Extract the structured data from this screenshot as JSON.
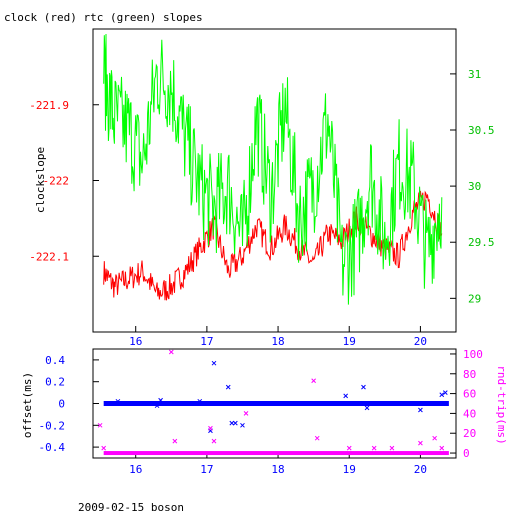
{
  "page_title": "clock (red) rtc (green) slopes",
  "footer": "2009-02-15 boson",
  "colors": {
    "clock": "#ff0000",
    "rtc": "#00ff00",
    "offset": "#0000ff",
    "rndtrip": "#ff00ff",
    "axis": "#000000"
  },
  "chart_data": [
    {
      "type": "line",
      "title": "clock (red) rtc (green) slopes",
      "xlabel": "",
      "ylabel": "clockslope",
      "xlim": [
        15.4,
        20.5
      ],
      "ylim_left": [
        -222.2,
        -221.8
      ],
      "ylim_right": [
        28.7,
        31.4
      ],
      "x_ticks": [
        "16",
        "17",
        "18",
        "19",
        "20"
      ],
      "y_ticks_left": [
        "-221.9",
        "-222",
        "-222.1"
      ],
      "y_ticks_right": [
        "31",
        "30.5",
        "30",
        "29.5",
        "29"
      ],
      "series": [
        {
          "color": "red",
          "axis": "left",
          "x": [
            15.55,
            15.7,
            15.9,
            16.1,
            16.3,
            16.5,
            16.7,
            16.9,
            17.1,
            17.3,
            17.5,
            17.7,
            17.9,
            18.1,
            18.3,
            18.5,
            18.7,
            18.9,
            19.1,
            19.3,
            19.5,
            19.7,
            19.9,
            20.1,
            20.3
          ],
          "values": [
            -222.12,
            -222.14,
            -222.13,
            -222.12,
            -222.15,
            -222.14,
            -222.12,
            -222.09,
            -222.06,
            -222.12,
            -222.1,
            -222.06,
            -222.09,
            -222.06,
            -222.09,
            -222.11,
            -222.07,
            -222.08,
            -222.05,
            -222.07,
            -222.09,
            -222.1,
            -222.04,
            -222.02,
            -222.07
          ]
        },
        {
          "color": "green",
          "axis": "right",
          "x": [
            15.55,
            15.7,
            15.9,
            16.1,
            16.3,
            16.5,
            16.7,
            16.9,
            17.1,
            17.3,
            17.5,
            17.7,
            17.9,
            18.1,
            18.3,
            18.5,
            18.7,
            18.9,
            19.1,
            19.3,
            19.5,
            19.7,
            19.9,
            20.1,
            20.3
          ],
          "values": [
            31.0,
            30.6,
            30.5,
            30.2,
            31.0,
            30.9,
            30.4,
            30.0,
            29.8,
            30.0,
            29.5,
            30.6,
            29.9,
            30.7,
            29.7,
            30.0,
            30.6,
            29.3,
            29.5,
            30.1,
            29.5,
            30.2,
            30.0,
            29.4,
            29.9
          ]
        }
      ]
    },
    {
      "type": "scatter",
      "xlabel": "",
      "ylabel_left": "offset(ms)",
      "ylabel_right": "rnd-trip(ms)",
      "xlim": [
        15.4,
        20.5
      ],
      "ylim_left": [
        -0.5,
        0.5
      ],
      "ylim_right": [
        -5,
        105
      ],
      "x_ticks": [
        "16",
        "17",
        "18",
        "19",
        "20"
      ],
      "y_ticks_left": [
        "0.4",
        "0.2",
        "0",
        "-0.2",
        "-0.4"
      ],
      "y_ticks_right": [
        "100",
        "80",
        "60",
        "40",
        "20",
        "0"
      ],
      "series": [
        {
          "color": "blue",
          "axis": "left",
          "marker": "x",
          "outliers_x": [
            15.75,
            16.3,
            16.35,
            16.9,
            17.05,
            17.1,
            17.3,
            17.35,
            17.4,
            17.5,
            18.95,
            19.2,
            19.25,
            20.0,
            20.3,
            20.35
          ],
          "outliers_y": [
            0.02,
            -0.02,
            0.03,
            0.02,
            -0.25,
            0.37,
            0.15,
            -0.18,
            -0.18,
            -0.2,
            0.07,
            0.15,
            -0.04,
            -0.06,
            0.08,
            0.1
          ],
          "baseline": 0.0
        },
        {
          "color": "magenta",
          "axis": "right",
          "marker": "x",
          "outliers_x": [
            15.5,
            15.55,
            16.5,
            16.55,
            17.05,
            17.1,
            17.55,
            18.5,
            18.55,
            19.0,
            19.35,
            19.6,
            20.0,
            20.2,
            20.3
          ],
          "outliers_y": [
            28,
            5,
            102,
            12,
            25,
            12,
            40,
            73,
            15,
            5,
            5,
            5,
            10,
            15,
            5
          ],
          "baseline": 0
        }
      ]
    }
  ]
}
